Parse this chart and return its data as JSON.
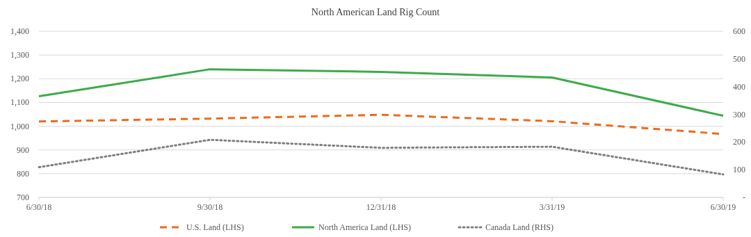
{
  "chart_data": {
    "type": "line",
    "title": "North American Land Rig Count",
    "categories": [
      "6/30/18",
      "9/30/18",
      "12/31/18",
      "3/31/19",
      "6/30/19"
    ],
    "series": [
      {
        "name": "U.S. Land (LHS)",
        "color": "#ed6b1c",
        "values": [
          1020,
          1032,
          1048,
          1021,
          967
        ],
        "line_style": "dashed"
      },
      {
        "name": "North America Land (LHS)",
        "color": "#3cab4a",
        "values": [
          1126,
          1240,
          1229,
          1205,
          1044
        ],
        "line_style": "solid"
      },
      {
        "name": "Canada Land (RHS)",
        "color": "#7f7f7f",
        "values": [
          109,
          208,
          179,
          183,
          83
        ],
        "line_style": "dotted",
        "axis": "y2"
      }
    ],
    "ylim": [
      700,
      1400
    ],
    "yticks": [
      {
        "value": 700,
        "label": "700"
      },
      {
        "value": 800,
        "label": "800"
      },
      {
        "value": 900,
        "label": "900"
      },
      {
        "value": 1000,
        "label": "1,000"
      },
      {
        "value": 1100,
        "label": "1,100"
      },
      {
        "value": 1200,
        "label": "1,200"
      },
      {
        "value": 1300,
        "label": "1,300"
      },
      {
        "value": 1400,
        "label": "1,400"
      }
    ],
    "y2lim": [
      0,
      600
    ],
    "y2ticks": [
      {
        "value": 0,
        "label": "-"
      },
      100,
      200,
      300,
      400,
      500,
      600
    ],
    "grid": "y",
    "legend": "bottom",
    "marker": "none"
  }
}
